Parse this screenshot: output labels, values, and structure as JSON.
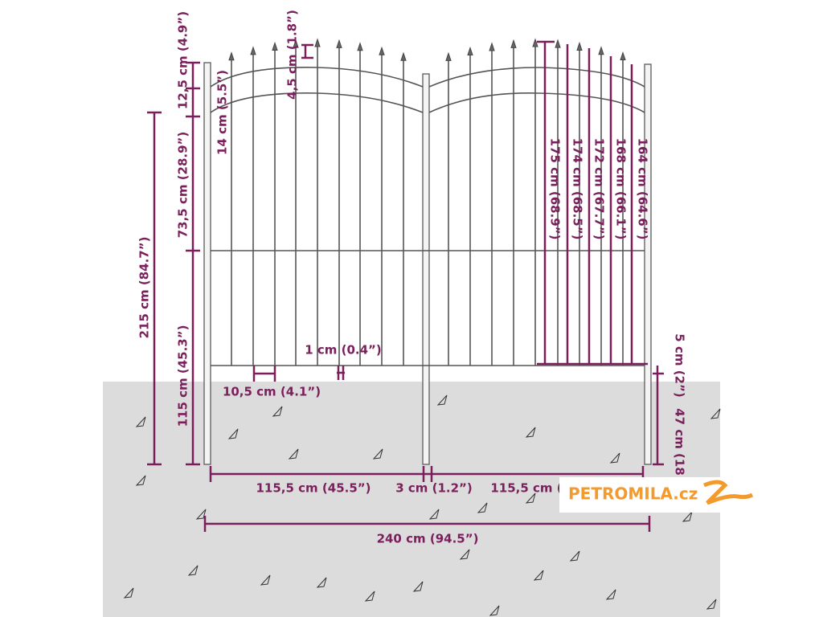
{
  "dimensions": {
    "top_finial_height": "12,5 cm (4.9”)",
    "arc_gap": "14 cm (5.5”)",
    "spear_height": "4,5 cm (1.8”)",
    "upper_section": "73,5 cm (28.9”)",
    "total_height": "215 cm (84.7”)",
    "lower_section": "115 cm (45.3”)",
    "picket_width": "1 cm (0.4”)",
    "picket_spacing": "10,5 cm (4.1”)",
    "picket_heights": [
      "175 cm (68.9”)",
      "174 cm (68.5”)",
      "172 cm (67.7”)",
      "168 cm (66.1”)",
      "164 cm (64.6”)"
    ],
    "ground_clearance": "5 cm (2”)",
    "post_depth": "47 cm (18",
    "left_gate_width": "115,5 cm (45.5”)",
    "gap_width": "3 cm (1.2”)",
    "right_gate_width": "115,5 cm (",
    "total_width": "240 cm (94.5”)"
  },
  "logo": "PETROMILA.cz"
}
